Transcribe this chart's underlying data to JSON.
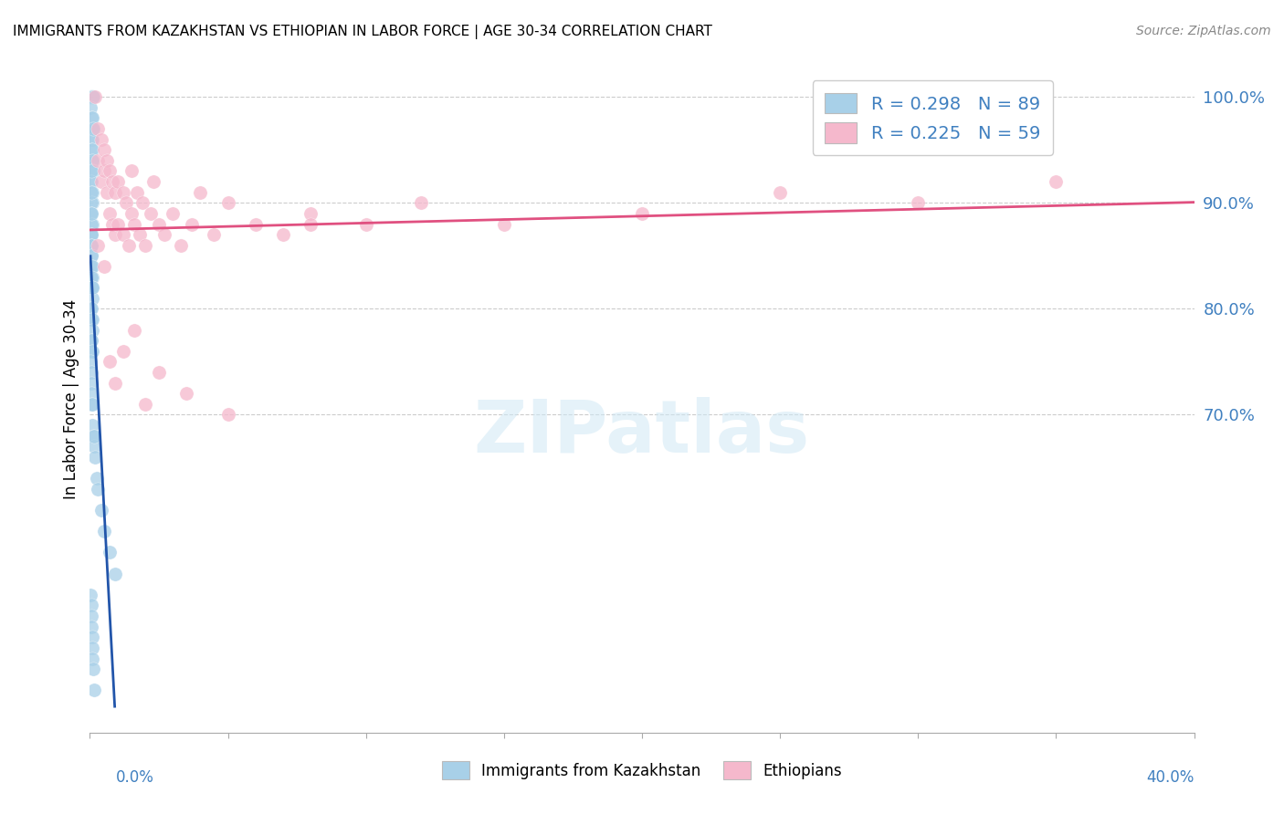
{
  "title": "IMMIGRANTS FROM KAZAKHSTAN VS ETHIOPIAN IN LABOR FORCE | AGE 30-34 CORRELATION CHART",
  "source": "Source: ZipAtlas.com",
  "ylabel": "In Labor Force | Age 30-34",
  "legend_label1": "Immigrants from Kazakhstan",
  "legend_label2": "Ethiopians",
  "R1": 0.298,
  "N1": 89,
  "R2": 0.225,
  "N2": 59,
  "color1": "#a8d0e8",
  "color2": "#f5b8cc",
  "line_color1": "#2255aa",
  "line_color2": "#e05080",
  "watermark_color": "#d0e8f5",
  "xlim": [
    0.0,
    0.4
  ],
  "ylim": [
    0.4,
    1.03
  ],
  "yticks": [
    1.0,
    0.9,
    0.8,
    0.7
  ],
  "ytick_labels": [
    "100.0%",
    "90.0%",
    "80.0%",
    "70.0%"
  ],
  "kaz_x": [
    0.0002,
    0.0003,
    0.0004,
    0.0005,
    0.0006,
    0.0007,
    0.0008,
    0.0009,
    0.001,
    0.0011,
    0.0003,
    0.0004,
    0.0005,
    0.0006,
    0.0007,
    0.0008,
    0.001,
    0.0012,
    0.0004,
    0.0005,
    0.0006,
    0.0007,
    0.0008,
    0.001,
    0.0012,
    0.0003,
    0.0004,
    0.0005,
    0.0006,
    0.0007,
    0.0008,
    0.0003,
    0.0004,
    0.0005,
    0.0006,
    0.0007,
    0.0003,
    0.0004,
    0.0005,
    0.0006,
    0.0003,
    0.0004,
    0.0005,
    0.0004,
    0.0005,
    0.0003,
    0.0004,
    0.0005,
    0.0006,
    0.0007,
    0.0008,
    0.0005,
    0.0006,
    0.0007,
    0.0008,
    0.001,
    0.0003,
    0.0004,
    0.0005,
    0.0007,
    0.0009,
    0.0004,
    0.0005,
    0.0006,
    0.0008,
    0.0003,
    0.0004,
    0.0005,
    0.0004,
    0.0006,
    0.001,
    0.0012,
    0.0015,
    0.002,
    0.0025,
    0.003,
    0.004,
    0.005,
    0.007,
    0.009,
    0.001,
    0.0015,
    0.0003,
    0.0004,
    0.0005,
    0.0006,
    0.0007,
    0.0008,
    0.001,
    0.0012,
    0.0015
  ],
  "kaz_y": [
    1.0,
    1.0,
    1.0,
    1.0,
    1.0,
    1.0,
    1.0,
    1.0,
    1.0,
    1.0,
    0.99,
    0.98,
    0.97,
    0.96,
    0.97,
    0.96,
    0.98,
    0.97,
    0.95,
    0.94,
    0.93,
    0.94,
    0.95,
    0.94,
    0.93,
    0.92,
    0.91,
    0.92,
    0.93,
    0.91,
    0.9,
    0.89,
    0.9,
    0.91,
    0.89,
    0.88,
    0.87,
    0.88,
    0.89,
    0.87,
    0.86,
    0.87,
    0.86,
    0.85,
    0.86,
    0.84,
    0.85,
    0.83,
    0.84,
    0.83,
    0.84,
    0.82,
    0.83,
    0.82,
    0.81,
    0.82,
    0.8,
    0.79,
    0.8,
    0.79,
    0.78,
    0.77,
    0.76,
    0.77,
    0.76,
    0.75,
    0.74,
    0.73,
    0.72,
    0.71,
    0.69,
    0.68,
    0.67,
    0.66,
    0.64,
    0.63,
    0.61,
    0.59,
    0.57,
    0.55,
    0.71,
    0.68,
    0.53,
    0.52,
    0.51,
    0.5,
    0.49,
    0.48,
    0.47,
    0.46,
    0.44
  ],
  "eth_x": [
    0.002,
    0.003,
    0.003,
    0.004,
    0.004,
    0.005,
    0.005,
    0.006,
    0.006,
    0.007,
    0.007,
    0.008,
    0.008,
    0.009,
    0.009,
    0.01,
    0.01,
    0.012,
    0.012,
    0.013,
    0.014,
    0.015,
    0.015,
    0.016,
    0.017,
    0.018,
    0.019,
    0.02,
    0.022,
    0.023,
    0.025,
    0.027,
    0.03,
    0.033,
    0.037,
    0.04,
    0.045,
    0.05,
    0.06,
    0.07,
    0.08,
    0.1,
    0.12,
    0.15,
    0.2,
    0.25,
    0.3,
    0.35,
    0.003,
    0.005,
    0.007,
    0.009,
    0.012,
    0.016,
    0.02,
    0.025,
    0.035,
    0.05,
    0.08
  ],
  "eth_y": [
    1.0,
    0.97,
    0.94,
    0.96,
    0.92,
    0.95,
    0.93,
    0.94,
    0.91,
    0.93,
    0.89,
    0.92,
    0.88,
    0.91,
    0.87,
    0.92,
    0.88,
    0.91,
    0.87,
    0.9,
    0.86,
    0.89,
    0.93,
    0.88,
    0.91,
    0.87,
    0.9,
    0.86,
    0.89,
    0.92,
    0.88,
    0.87,
    0.89,
    0.86,
    0.88,
    0.91,
    0.87,
    0.9,
    0.88,
    0.87,
    0.89,
    0.88,
    0.9,
    0.88,
    0.89,
    0.91,
    0.9,
    0.92,
    0.86,
    0.84,
    0.75,
    0.73,
    0.76,
    0.78,
    0.71,
    0.74,
    0.72,
    0.7,
    0.88
  ]
}
